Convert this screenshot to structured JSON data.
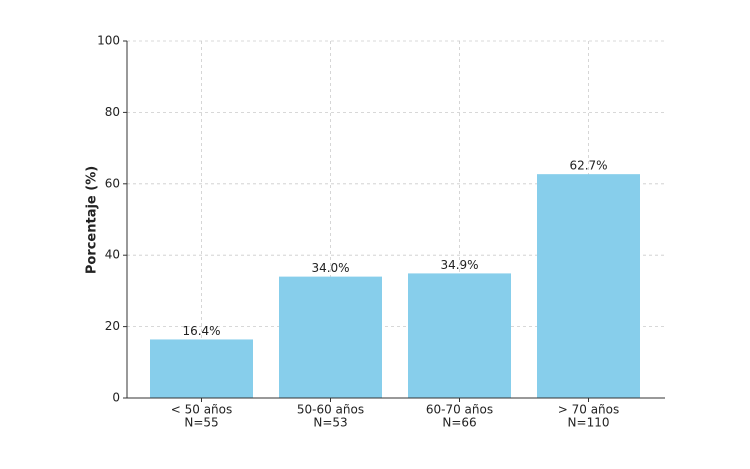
{
  "chart_data": {
    "type": "bar",
    "ylabel": "Porcentaje (%)",
    "categories": [
      [
        "< 50 años",
        "N=55"
      ],
      [
        "50-60 años",
        "N=53"
      ],
      [
        "60-70 años",
        "N=66"
      ],
      [
        "> 70 años",
        "N=110"
      ]
    ],
    "values": [
      16.4,
      34.0,
      34.9,
      62.7
    ],
    "value_labels": [
      "16.4%",
      "34.0%",
      "34.9%",
      "62.7%"
    ],
    "color": "#87ceeb",
    "ylim": [
      0,
      100
    ],
    "yticks": [
      0,
      20,
      40,
      60,
      80,
      100
    ],
    "grid": true
  }
}
